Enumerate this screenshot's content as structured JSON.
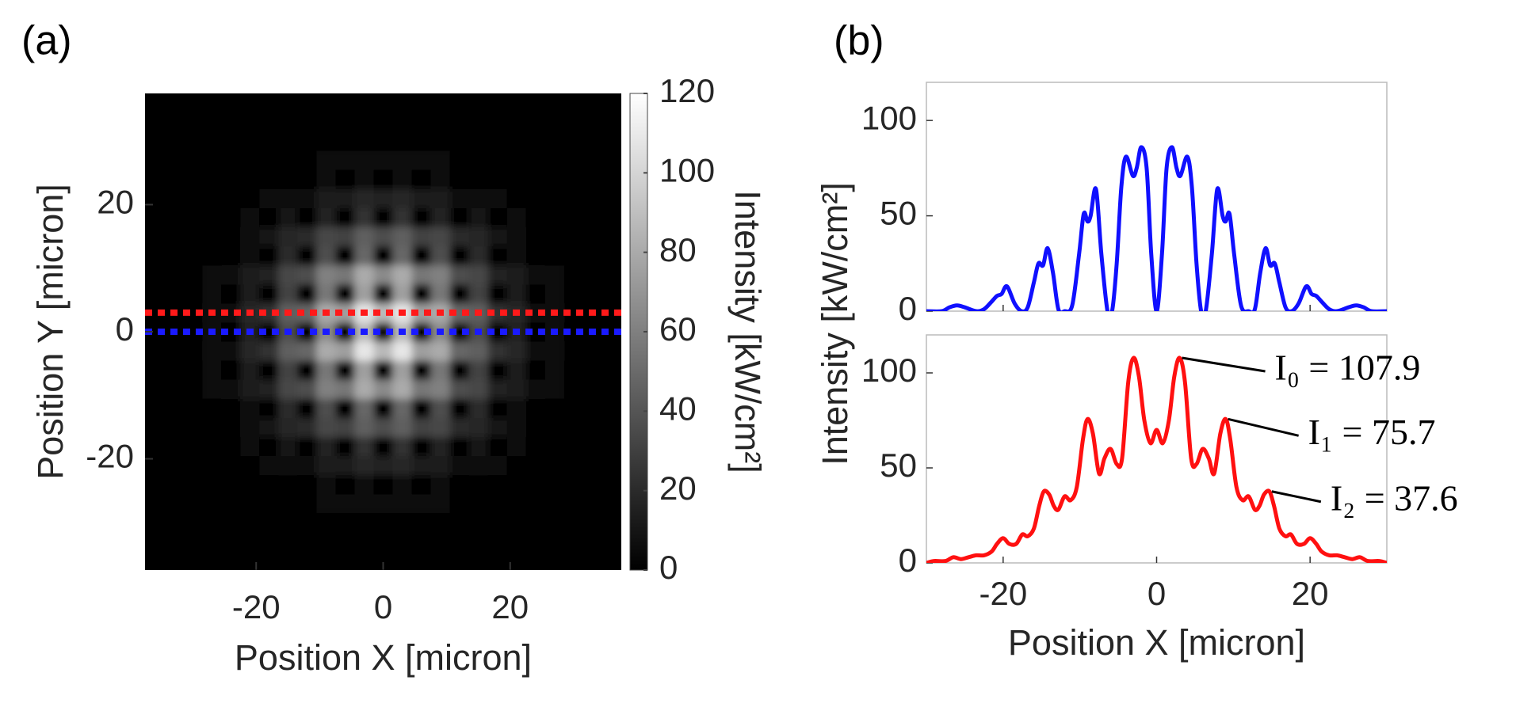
{
  "chart_data": [
    {
      "type": "heatmap",
      "panel": "(a)",
      "xlabel": "Position X [micron]",
      "ylabel": "Position Y [micron]",
      "xlim": [
        -37.5,
        37.5
      ],
      "ylim": [
        -37.5,
        37.5
      ],
      "xticks": [
        -20,
        0,
        20
      ],
      "yticks": [
        -20,
        0,
        20
      ],
      "colorbar": {
        "label": "Intensity [kW/cm²]",
        "clim": [
          0,
          120
        ],
        "ticks": [
          0,
          20,
          40,
          60,
          80,
          100,
          120
        ],
        "colormap": "gray"
      },
      "lines": [
        {
          "y": 3,
          "color": "#ff1a1a"
        },
        {
          "y": 0,
          "color": "#1a1aff"
        }
      ],
      "x": [
        -27,
        -24,
        -21,
        -18,
        -15,
        -12,
        -9,
        -6,
        -3,
        0,
        3,
        6,
        9,
        12,
        15,
        18,
        21,
        24,
        27
      ],
      "y": [
        -27,
        -24,
        -21,
        -18,
        -15,
        -12,
        -9,
        -6,
        -3,
        0,
        3,
        6,
        9,
        12,
        15,
        18,
        21,
        24,
        27
      ],
      "z": [
        [
          0,
          0,
          1,
          1,
          2,
          2,
          4,
          4,
          5,
          4,
          5,
          4,
          4,
          2,
          2,
          1,
          1,
          0,
          0
        ],
        [
          0,
          0,
          1,
          0,
          3,
          0,
          6,
          0,
          8,
          0,
          8,
          0,
          6,
          0,
          3,
          0,
          1,
          0,
          0
        ],
        [
          1,
          1,
          3,
          4,
          7,
          8,
          13,
          13,
          18,
          15,
          18,
          13,
          13,
          8,
          7,
          4,
          3,
          1,
          1
        ],
        [
          1,
          0,
          4,
          0,
          9,
          0,
          17,
          0,
          23,
          0,
          23,
          0,
          17,
          0,
          9,
          0,
          4,
          0,
          1
        ],
        [
          2,
          3,
          7,
          9,
          18,
          20,
          33,
          31,
          44,
          36,
          44,
          31,
          33,
          20,
          18,
          9,
          7,
          3,
          2
        ],
        [
          2,
          0,
          8,
          0,
          20,
          0,
          36,
          0,
          48,
          0,
          48,
          0,
          36,
          0,
          20,
          0,
          8,
          0,
          2
        ],
        [
          4,
          6,
          13,
          17,
          33,
          36,
          60,
          56,
          80,
          65,
          80,
          56,
          60,
          36,
          33,
          17,
          13,
          6,
          4
        ],
        [
          4,
          0,
          13,
          0,
          31,
          0,
          56,
          0,
          75,
          0,
          75,
          0,
          56,
          0,
          31,
          0,
          13,
          0,
          4
        ],
        [
          5,
          8,
          18,
          23,
          44,
          48,
          80,
          75,
          108,
          87,
          108,
          75,
          80,
          48,
          44,
          23,
          18,
          8,
          5
        ],
        [
          4,
          0,
          15,
          0,
          36,
          0,
          65,
          0,
          87,
          0,
          87,
          0,
          65,
          0,
          36,
          0,
          15,
          0,
          4
        ],
        [
          5,
          8,
          18,
          23,
          44,
          48,
          80,
          75,
          108,
          87,
          108,
          75,
          80,
          48,
          44,
          23,
          18,
          8,
          5
        ],
        [
          4,
          0,
          13,
          0,
          31,
          0,
          56,
          0,
          75,
          0,
          75,
          0,
          56,
          0,
          31,
          0,
          13,
          0,
          4
        ],
        [
          4,
          6,
          13,
          17,
          33,
          36,
          60,
          56,
          80,
          65,
          80,
          56,
          60,
          36,
          33,
          17,
          13,
          6,
          4
        ],
        [
          2,
          0,
          8,
          0,
          20,
          0,
          36,
          0,
          48,
          0,
          48,
          0,
          36,
          0,
          20,
          0,
          8,
          0,
          2
        ],
        [
          2,
          3,
          7,
          9,
          18,
          20,
          33,
          31,
          44,
          36,
          44,
          31,
          33,
          20,
          18,
          9,
          7,
          3,
          2
        ],
        [
          1,
          0,
          4,
          0,
          9,
          0,
          17,
          0,
          23,
          0,
          23,
          0,
          17,
          0,
          9,
          0,
          4,
          0,
          1
        ],
        [
          1,
          1,
          3,
          4,
          7,
          8,
          13,
          13,
          18,
          15,
          18,
          13,
          13,
          8,
          7,
          4,
          3,
          1,
          1
        ],
        [
          0,
          0,
          1,
          0,
          3,
          0,
          6,
          0,
          8,
          0,
          8,
          0,
          6,
          0,
          3,
          0,
          1,
          0,
          0
        ],
        [
          0,
          0,
          1,
          1,
          2,
          2,
          4,
          4,
          5,
          4,
          5,
          4,
          4,
          2,
          2,
          1,
          1,
          0,
          0
        ]
      ]
    },
    {
      "type": "line",
      "panel": "(b)",
      "xlim": [
        -30,
        30
      ],
      "ylim": [
        0,
        120
      ],
      "xticks": [
        -20,
        0,
        20
      ],
      "yticks": [
        0,
        50,
        100
      ],
      "show_xtick_labels": false,
      "x": [
        -30,
        -28,
        -27,
        -26,
        -25,
        -23.5,
        -22.5,
        -21.5,
        -20.8,
        -20.2,
        -19.5,
        -18.5,
        -17.6,
        -16.8,
        -16,
        -15.4,
        -14.8,
        -14.2,
        -13.5,
        -12.8,
        -12,
        -11,
        -10.1,
        -9.5,
        -9,
        -8.6,
        -7.9,
        -7.2,
        -6.4,
        -5.8,
        -5.2,
        -4.6,
        -4,
        -3.1,
        -2.6,
        -2,
        -1.3,
        -0.7,
        0,
        0.7,
        1.3,
        2,
        2.6,
        3.1,
        4,
        4.6,
        5.2,
        5.8,
        6.4,
        7.2,
        7.9,
        8.6,
        9,
        9.5,
        10.1,
        11,
        12,
        12.8,
        13.5,
        14.2,
        14.8,
        15.4,
        16,
        16.8,
        17.6,
        18.5,
        19.5,
        20.2,
        20.8,
        21.5,
        22.5,
        23.5,
        25,
        26,
        27,
        28,
        30
      ],
      "series": [
        {
          "color": "#1010ff",
          "values": [
            0,
            0,
            2,
            3,
            2,
            0,
            1,
            5,
            8,
            9,
            13,
            4,
            0,
            2,
            15,
            25,
            24,
            33,
            20,
            1,
            0,
            3,
            30,
            51,
            47,
            50,
            64,
            30,
            0,
            0,
            25,
            65,
            81,
            71,
            75,
            86,
            75,
            30,
            0,
            30,
            75,
            86,
            75,
            71,
            81,
            65,
            25,
            0,
            0,
            30,
            64,
            50,
            47,
            51,
            30,
            3,
            0,
            1,
            20,
            33,
            24,
            25,
            15,
            2,
            0,
            4,
            13,
            9,
            8,
            5,
            1,
            0,
            2,
            3,
            2,
            0,
            0
          ]
        }
      ]
    },
    {
      "type": "line",
      "xlabel": "Position X [micron]",
      "ylabel": "Intensity [kW/cm²]",
      "xlim": [
        -30,
        30
      ],
      "ylim": [
        0,
        120
      ],
      "xticks": [
        -20,
        0,
        20
      ],
      "yticks": [
        0,
        50,
        100
      ],
      "show_xtick_labels": true,
      "x": [
        -30,
        -29,
        -27.5,
        -26.5,
        -25.5,
        -24.5,
        -23.5,
        -22.5,
        -21.5,
        -20.8,
        -20,
        -19.2,
        -18.3,
        -17.5,
        -16.8,
        -16,
        -15.3,
        -14.7,
        -14,
        -13.4,
        -12.8,
        -12,
        -11.2,
        -10.4,
        -9.6,
        -9,
        -8.3,
        -7.5,
        -6.8,
        -6,
        -5.2,
        -4.5,
        -3.7,
        -3,
        -2.3,
        -1.6,
        -0.8,
        0,
        0.8,
        1.6,
        2.3,
        3,
        3.7,
        4.5,
        5.2,
        6,
        6.8,
        7.5,
        8.3,
        9,
        9.6,
        10.4,
        11.2,
        12,
        12.8,
        13.4,
        14,
        14.7,
        15.3,
        16,
        16.8,
        17.5,
        18.3,
        19.2,
        20,
        20.8,
        21.5,
        22.5,
        23.5,
        24.5,
        25.5,
        26.5,
        27.5,
        29,
        30
      ],
      "series": [
        {
          "color": "#ff1010",
          "values": [
            0,
            1,
            1,
            3,
            2,
            3,
            4,
            4,
            6,
            10,
            13,
            10,
            10,
            15,
            14,
            18,
            30,
            37.6,
            36,
            30,
            28,
            35,
            33,
            40,
            65,
            75.7,
            68,
            47,
            55,
            60,
            52,
            55,
            95,
            107.9,
            98,
            75,
            63,
            70,
            63,
            75,
            98,
            107.9,
            95,
            55,
            52,
            60,
            55,
            47,
            68,
            75.7,
            65,
            40,
            33,
            35,
            28,
            30,
            36,
            37.6,
            30,
            18,
            14,
            15,
            10,
            10,
            13,
            10,
            6,
            4,
            4,
            3,
            2,
            3,
            1,
            1,
            0
          ]
        }
      ],
      "annotations": [
        {
          "text": "I₀ = 107.9",
          "x": 3,
          "y": 107.9
        },
        {
          "text": "I₁ = 75.7",
          "x": 9,
          "y": 75.7
        },
        {
          "text": "I₂ = 37.6",
          "x": 14.7,
          "y": 37.6
        }
      ]
    }
  ]
}
